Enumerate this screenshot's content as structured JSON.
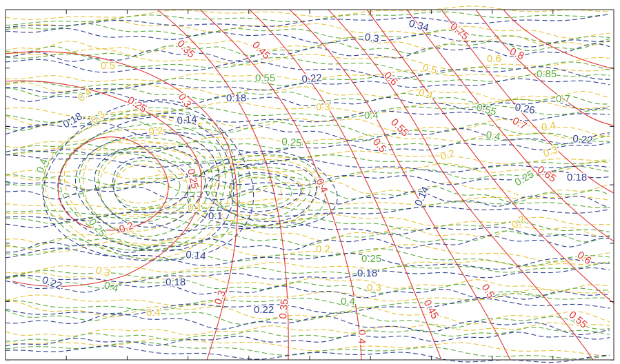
{
  "chart_data": {
    "type": "contour",
    "title": "",
    "xlabel": "",
    "ylabel": "",
    "grid": false,
    "xlim": [
      0,
      10
    ],
    "ylim": [
      0,
      6
    ],
    "colors": {
      "red": "#e0342f",
      "blue": "#2f3f8f",
      "green": "#5aab3c",
      "yellow": "#e6c336"
    },
    "series": [
      {
        "name": "red",
        "style": "solid",
        "color": "#e0342f",
        "levels": [
          "0.2",
          "0.25",
          "0.25",
          "0.3",
          "0.3",
          "0.35",
          "0.35",
          "0.4",
          "0.4",
          "0.45",
          "0.45",
          "0.5",
          "0.5",
          "0.55",
          "0.55",
          "0.6",
          "0.6",
          "0.65",
          "0.7",
          "0.75",
          "0.8"
        ]
      },
      {
        "name": "blue",
        "style": "dashed",
        "color": "#2f3f8f",
        "levels": [
          "0.1",
          "0.14",
          "0.14",
          "0.14",
          "0.18",
          "0.18",
          "0.18",
          "0.18",
          "0.18",
          "0.22",
          "0.22",
          "0.22",
          "0.22",
          "0.26",
          "0.3",
          "0.34"
        ]
      },
      {
        "name": "green",
        "style": "dashed",
        "color": "#5aab3c",
        "levels": [
          "0.25",
          "0.25",
          "0.25",
          "0.25",
          "0.4",
          "0.4",
          "0.4",
          "0.4",
          "0.4",
          "0.55",
          "0.55",
          "0.7",
          "0.85"
        ]
      },
      {
        "name": "yellow",
        "style": "dashed",
        "color": "#e6c336",
        "levels": [
          "0.1",
          "0.2",
          "0.2",
          "0.2",
          "0.2",
          "0.3",
          "0.3",
          "0.3",
          "0.3",
          "0.3",
          "0.4",
          "0.4",
          "0.4",
          "0.4",
          "0.5",
          "0.5",
          "0.6"
        ]
      }
    ]
  }
}
